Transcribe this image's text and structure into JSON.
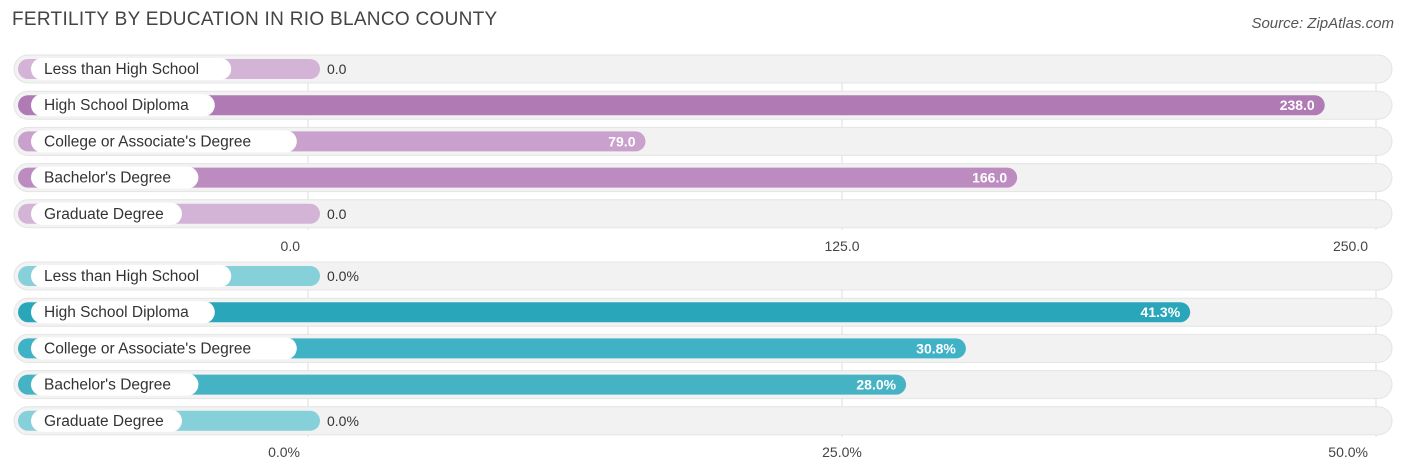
{
  "title": "FERTILITY BY EDUCATION IN RIO BLANCO COUNTY",
  "source": "Source: ZipAtlas.com",
  "chart_data": [
    {
      "type": "bar",
      "orientation": "horizontal",
      "categories": [
        "Less than High School",
        "High School Diploma",
        "College or Associate's Degree",
        "Bachelor's Degree",
        "Graduate Degree"
      ],
      "values": [
        0.0,
        238.0,
        79.0,
        166.0,
        0.0
      ],
      "value_labels": [
        "0.0",
        "238.0",
        "79.0",
        "166.0",
        "0.0"
      ],
      "xlim": [
        0,
        250
      ],
      "ticks": [
        0,
        125,
        250
      ],
      "tick_labels": [
        "0.0",
        "125.0",
        "250.0"
      ],
      "colors": [
        "#d3b3d6",
        "#b07ab5",
        "#c9a1cc",
        "#bc8cc0",
        "#d3b3d6"
      ]
    },
    {
      "type": "bar",
      "orientation": "horizontal",
      "categories": [
        "Less than High School",
        "High School Diploma",
        "College or Associate's Degree",
        "Bachelor's Degree",
        "Graduate Degree"
      ],
      "values": [
        0.0,
        41.3,
        30.8,
        28.0,
        0.0
      ],
      "value_labels": [
        "0.0%",
        "41.3%",
        "30.8%",
        "28.0%",
        "0.0%"
      ],
      "xlim": [
        0,
        50
      ],
      "ticks": [
        0,
        25,
        50
      ],
      "tick_labels": [
        "0.0%",
        "25.0%",
        "50.0%"
      ],
      "colors": [
        "#86d0da",
        "#2aa6ba",
        "#3fb2c5",
        "#46b3c4",
        "#86d0da"
      ]
    }
  ]
}
